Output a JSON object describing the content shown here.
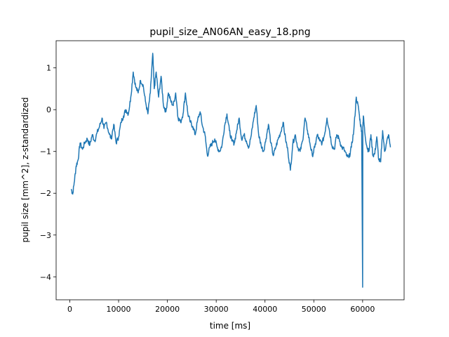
{
  "chart_data": {
    "type": "line",
    "title": "pupil_size_AN06AN_easy_18.png",
    "xlabel": "time [ms]",
    "ylabel": "pupil size [mm^2], z-standardized",
    "xlim": [
      -2800,
      68500
    ],
    "ylim": [
      -4.55,
      1.65
    ],
    "xticks": [
      0,
      10000,
      20000,
      30000,
      40000,
      50000,
      60000
    ],
    "yticks": [
      1,
      0,
      -1,
      -2,
      -3,
      -4
    ],
    "xtick_labels": [
      "0",
      "10000",
      "20000",
      "30000",
      "40000",
      "50000",
      "60000"
    ],
    "ytick_labels": [
      "1",
      "0",
      "−1",
      "−2",
      "−3",
      "−4"
    ],
    "grid": false,
    "color": "#1f77b4",
    "series": [
      {
        "x": [
          300,
          600,
          900,
          1300,
          1700,
          2100,
          2600,
          3100,
          3600,
          4100,
          4600,
          5100,
          5600,
          6100,
          6600,
          7000,
          7500,
          8000,
          8500,
          9000,
          9500,
          10000,
          10500,
          11000,
          11500,
          12000,
          12500,
          13000,
          13500,
          14000,
          14500,
          15000,
          15500,
          16000,
          16500,
          17000,
          17300,
          17700,
          18200,
          18700,
          19200,
          19700,
          20200,
          20700,
          21200,
          21700,
          22200,
          22700,
          23200,
          23700,
          24200,
          24700,
          25200,
          25700,
          26200,
          26700,
          27200,
          27700,
          28200,
          28700,
          29200,
          29700,
          30200,
          30700,
          31200,
          31700,
          32200,
          32700,
          33200,
          33700,
          34200,
          34700,
          35200,
          35700,
          36200,
          36700,
          37200,
          37700,
          38200,
          38700,
          39200,
          39700,
          40200,
          40700,
          41200,
          41700,
          42200,
          42700,
          43200,
          43700,
          44200,
          44700,
          45200,
          45700,
          46200,
          46700,
          47200,
          47700,
          48200,
          48700,
          49200,
          49700,
          50200,
          50700,
          51200,
          51700,
          52200,
          52700,
          53200,
          53700,
          54200,
          54700,
          55200,
          55700,
          56200,
          56700,
          57200,
          57700,
          58200,
          58700,
          59200,
          59500,
          59800,
          60000,
          60050,
          60150,
          60500,
          60900,
          61300,
          61700,
          62100,
          62500,
          62900,
          63300,
          63700,
          64100,
          64500,
          64900,
          65300,
          65700
        ],
        "y": [
          -1.9,
          -2.02,
          -1.75,
          -1.35,
          -1.2,
          -0.8,
          -0.95,
          -0.78,
          -0.7,
          -0.85,
          -0.6,
          -0.75,
          -0.55,
          -0.4,
          -0.2,
          -0.45,
          -0.3,
          -0.55,
          -0.7,
          -0.35,
          -0.8,
          -0.65,
          -0.3,
          -0.15,
          0.0,
          -0.1,
          0.3,
          0.9,
          0.55,
          0.4,
          0.7,
          0.6,
          0.2,
          -0.1,
          0.4,
          1.35,
          0.5,
          0.9,
          0.3,
          0.8,
          0.1,
          -0.05,
          0.4,
          0.2,
          0.1,
          0.4,
          -0.2,
          -0.3,
          -0.1,
          0.4,
          -0.1,
          -0.3,
          -0.4,
          -0.6,
          -0.25,
          -0.05,
          -0.4,
          -0.6,
          -1.1,
          -0.9,
          -0.8,
          -0.7,
          -0.9,
          -1.0,
          -0.85,
          -0.4,
          -0.1,
          -0.5,
          -0.75,
          -0.8,
          -0.5,
          -0.2,
          -0.7,
          -0.6,
          -0.75,
          -0.9,
          -0.6,
          -0.2,
          0.1,
          -0.6,
          -0.85,
          -1.0,
          -0.7,
          -0.35,
          -0.8,
          -1.1,
          -0.9,
          -0.7,
          -0.55,
          -0.3,
          -0.7,
          -1.0,
          -1.45,
          -0.8,
          -0.6,
          -0.9,
          -1.0,
          -0.75,
          -0.2,
          -0.5,
          -0.8,
          -1.1,
          -0.9,
          -0.6,
          -0.75,
          -0.8,
          -0.6,
          -0.2,
          -0.5,
          -0.85,
          -0.95,
          -0.6,
          -0.7,
          -0.9,
          -0.95,
          -1.1,
          -1.15,
          -0.9,
          -0.5,
          0.3,
          0.0,
          -0.3,
          -0.5,
          -4.25,
          -0.4,
          -0.15,
          -0.6,
          -0.9,
          -1.0,
          -0.6,
          -1.1,
          -1.05,
          -0.65,
          -1.2,
          -1.25,
          -0.5,
          -1.0,
          -0.8,
          -0.6,
          -0.9
        ]
      }
    ]
  }
}
